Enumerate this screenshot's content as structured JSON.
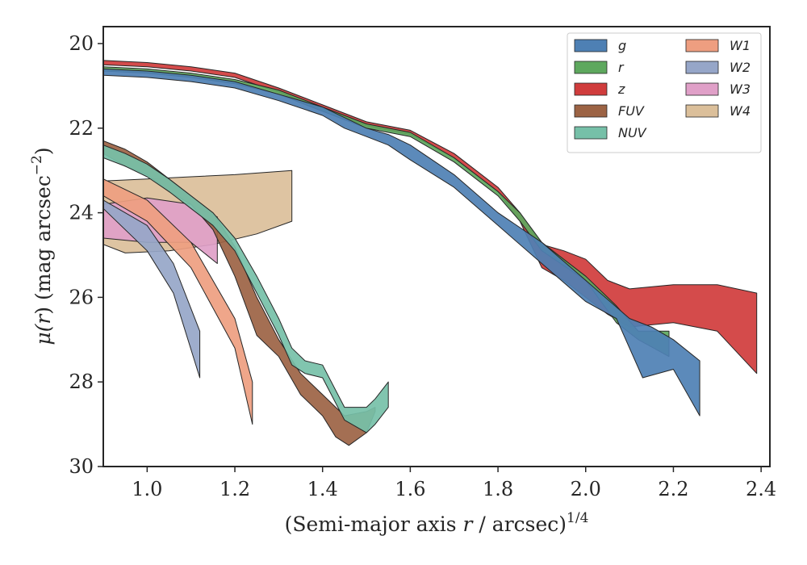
{
  "chart_data": {
    "type": "area",
    "xlim": [
      0.9,
      2.42
    ],
    "ylim": [
      30,
      19.6
    ],
    "y_inverted": true,
    "grid": false,
    "legend_placement": "top-right",
    "legend_columns": 2,
    "xticks": [
      "1.0",
      "1.2",
      "1.4",
      "1.6",
      "1.8",
      "2.0",
      "2.2",
      "2.4"
    ],
    "xtick_values": [
      1.0,
      1.2,
      1.4,
      1.6,
      1.8,
      2.0,
      2.2,
      2.4
    ],
    "yticks": [
      "20",
      "22",
      "24",
      "26",
      "28",
      "30"
    ],
    "ytick_values": [
      20,
      22,
      24,
      26,
      28,
      30
    ],
    "xlabel": {
      "main": "(Semi-major axis ",
      "var": "r",
      "mid": " / arcsec)",
      "sup": "1/4"
    },
    "ylabel": {
      "mu": "μ(",
      "var": "r",
      "mid": ") (mag arcsec",
      "sup": "−2",
      "end": ")"
    },
    "series": [
      {
        "name": "W4",
        "color": "#dbbf9a",
        "upper": [
          [
            0.9,
            23.25
          ],
          [
            1.0,
            23.2
          ],
          [
            1.1,
            23.15
          ],
          [
            1.2,
            23.1
          ],
          [
            1.33,
            23.0
          ]
        ],
        "lower": [
          [
            0.9,
            24.75
          ],
          [
            0.95,
            24.95
          ],
          [
            1.05,
            24.9
          ],
          [
            1.15,
            24.75
          ],
          [
            1.25,
            24.5
          ],
          [
            1.33,
            24.2
          ]
        ]
      },
      {
        "name": "W3",
        "color": "#e0a0c8",
        "upper": [
          [
            0.9,
            23.8
          ],
          [
            1.0,
            23.65
          ],
          [
            1.1,
            23.8
          ],
          [
            1.16,
            24.1
          ]
        ],
        "lower": [
          [
            0.9,
            24.6
          ],
          [
            1.0,
            24.7
          ],
          [
            1.1,
            24.7
          ],
          [
            1.16,
            25.2
          ]
        ]
      },
      {
        "name": "W2",
        "color": "#96a6c8",
        "upper": [
          [
            0.9,
            23.7
          ],
          [
            1.0,
            24.3
          ],
          [
            1.06,
            25.2
          ],
          [
            1.12,
            26.8
          ]
        ],
        "lower": [
          [
            0.9,
            23.9
          ],
          [
            1.0,
            24.9
          ],
          [
            1.06,
            25.9
          ],
          [
            1.12,
            27.9
          ]
        ]
      },
      {
        "name": "W1",
        "color": "#ee9e80",
        "upper": [
          [
            0.9,
            23.2
          ],
          [
            1.0,
            23.7
          ],
          [
            1.1,
            24.7
          ],
          [
            1.2,
            26.5
          ],
          [
            1.24,
            28.0
          ]
        ],
        "lower": [
          [
            0.9,
            23.6
          ],
          [
            1.0,
            24.2
          ],
          [
            1.1,
            25.3
          ],
          [
            1.2,
            27.2
          ],
          [
            1.24,
            29.0
          ]
        ]
      },
      {
        "name": "FUV",
        "color": "#9c6344",
        "upper": [
          [
            0.9,
            22.3
          ],
          [
            0.95,
            22.5
          ],
          [
            1.0,
            22.8
          ],
          [
            1.05,
            23.2
          ],
          [
            1.1,
            23.6
          ],
          [
            1.15,
            24.0
          ],
          [
            1.2,
            24.8
          ],
          [
            1.25,
            26.0
          ],
          [
            1.3,
            27.0
          ],
          [
            1.35,
            27.8
          ],
          [
            1.4,
            28.3
          ],
          [
            1.45,
            28.8
          ],
          [
            1.5,
            28.7
          ],
          [
            1.52,
            28.6
          ]
        ],
        "lower": [
          [
            0.9,
            22.6
          ],
          [
            0.95,
            22.9
          ],
          [
            1.0,
            23.1
          ],
          [
            1.05,
            23.5
          ],
          [
            1.1,
            23.8
          ],
          [
            1.15,
            24.4
          ],
          [
            1.2,
            25.5
          ],
          [
            1.25,
            26.9
          ],
          [
            1.3,
            27.4
          ],
          [
            1.35,
            28.3
          ],
          [
            1.4,
            28.8
          ],
          [
            1.43,
            29.3
          ],
          [
            1.46,
            29.5
          ],
          [
            1.5,
            29.2
          ],
          [
            1.52,
            28.7
          ]
        ]
      },
      {
        "name": "NUV",
        "color": "#76c0a8",
        "upper": [
          [
            0.9,
            22.4
          ],
          [
            0.95,
            22.6
          ],
          [
            1.0,
            22.85
          ],
          [
            1.05,
            23.2
          ],
          [
            1.1,
            23.6
          ],
          [
            1.15,
            24.0
          ],
          [
            1.2,
            24.6
          ],
          [
            1.25,
            25.5
          ],
          [
            1.3,
            26.5
          ],
          [
            1.33,
            27.2
          ],
          [
            1.36,
            27.5
          ],
          [
            1.4,
            27.6
          ],
          [
            1.45,
            28.6
          ],
          [
            1.5,
            28.6
          ],
          [
            1.52,
            28.4
          ],
          [
            1.55,
            28.0
          ]
        ],
        "lower": [
          [
            0.9,
            22.7
          ],
          [
            0.95,
            22.9
          ],
          [
            1.0,
            23.15
          ],
          [
            1.05,
            23.5
          ],
          [
            1.1,
            23.9
          ],
          [
            1.15,
            24.3
          ],
          [
            1.2,
            24.9
          ],
          [
            1.25,
            25.9
          ],
          [
            1.3,
            26.9
          ],
          [
            1.33,
            27.6
          ],
          [
            1.36,
            27.8
          ],
          [
            1.4,
            27.9
          ],
          [
            1.45,
            28.9
          ],
          [
            1.5,
            29.2
          ],
          [
            1.52,
            29.0
          ],
          [
            1.55,
            28.6
          ]
        ]
      },
      {
        "name": "z",
        "color": "#d03c3c",
        "upper": [
          [
            0.9,
            20.4
          ],
          [
            1.0,
            20.45
          ],
          [
            1.1,
            20.55
          ],
          [
            1.2,
            20.7
          ],
          [
            1.3,
            21.05
          ],
          [
            1.4,
            21.45
          ],
          [
            1.5,
            21.85
          ],
          [
            1.6,
            22.05
          ],
          [
            1.7,
            22.6
          ],
          [
            1.8,
            23.4
          ],
          [
            1.85,
            24.0
          ],
          [
            1.9,
            24.75
          ],
          [
            1.95,
            24.9
          ],
          [
            2.0,
            25.1
          ],
          [
            2.05,
            25.6
          ],
          [
            2.1,
            25.8
          ],
          [
            2.2,
            25.7
          ],
          [
            2.3,
            25.7
          ],
          [
            2.39,
            25.9
          ]
        ],
        "lower": [
          [
            0.9,
            20.5
          ],
          [
            1.0,
            20.55
          ],
          [
            1.1,
            20.65
          ],
          [
            1.2,
            20.8
          ],
          [
            1.3,
            21.15
          ],
          [
            1.4,
            21.55
          ],
          [
            1.5,
            21.95
          ],
          [
            1.6,
            22.15
          ],
          [
            1.7,
            22.7
          ],
          [
            1.8,
            23.5
          ],
          [
            1.85,
            24.2
          ],
          [
            1.9,
            25.3
          ],
          [
            1.95,
            25.6
          ],
          [
            2.0,
            26.0
          ],
          [
            2.05,
            26.4
          ],
          [
            2.1,
            26.7
          ],
          [
            2.2,
            26.6
          ],
          [
            2.3,
            26.8
          ],
          [
            2.39,
            27.8
          ]
        ]
      },
      {
        "name": "r",
        "color": "#5ea85e",
        "upper": [
          [
            0.9,
            20.55
          ],
          [
            1.0,
            20.6
          ],
          [
            1.1,
            20.7
          ],
          [
            1.2,
            20.85
          ],
          [
            1.3,
            21.1
          ],
          [
            1.4,
            21.5
          ],
          [
            1.5,
            21.9
          ],
          [
            1.6,
            22.1
          ],
          [
            1.7,
            22.7
          ],
          [
            1.8,
            23.5
          ],
          [
            1.85,
            24.0
          ],
          [
            1.9,
            24.7
          ],
          [
            2.0,
            25.5
          ],
          [
            2.07,
            26.2
          ],
          [
            2.12,
            26.8
          ],
          [
            2.19,
            26.8
          ]
        ],
        "lower": [
          [
            0.9,
            20.65
          ],
          [
            1.0,
            20.7
          ],
          [
            1.1,
            20.8
          ],
          [
            1.2,
            20.95
          ],
          [
            1.3,
            21.2
          ],
          [
            1.4,
            21.6
          ],
          [
            1.5,
            22.0
          ],
          [
            1.6,
            22.2
          ],
          [
            1.7,
            22.8
          ],
          [
            1.8,
            23.6
          ],
          [
            1.85,
            24.2
          ],
          [
            1.9,
            24.9
          ],
          [
            2.0,
            25.6
          ],
          [
            2.07,
            26.6
          ],
          [
            2.12,
            27.0
          ],
          [
            2.19,
            27.4
          ]
        ]
      },
      {
        "name": "g",
        "color": "#4e80b4",
        "upper": [
          [
            0.9,
            20.6
          ],
          [
            1.0,
            20.65
          ],
          [
            1.1,
            20.75
          ],
          [
            1.2,
            20.9
          ],
          [
            1.3,
            21.2
          ],
          [
            1.4,
            21.5
          ],
          [
            1.45,
            21.75
          ],
          [
            1.5,
            22.0
          ],
          [
            1.55,
            22.15
          ],
          [
            1.6,
            22.4
          ],
          [
            1.7,
            23.1
          ],
          [
            1.8,
            24.0
          ],
          [
            1.9,
            24.7
          ],
          [
            2.0,
            25.6
          ],
          [
            2.1,
            26.5
          ],
          [
            2.15,
            26.7
          ],
          [
            2.2,
            27.0
          ],
          [
            2.26,
            27.5
          ]
        ],
        "lower": [
          [
            0.9,
            20.75
          ],
          [
            1.0,
            20.8
          ],
          [
            1.1,
            20.9
          ],
          [
            1.2,
            21.05
          ],
          [
            1.3,
            21.35
          ],
          [
            1.4,
            21.7
          ],
          [
            1.45,
            22.0
          ],
          [
            1.5,
            22.2
          ],
          [
            1.55,
            22.4
          ],
          [
            1.6,
            22.75
          ],
          [
            1.7,
            23.4
          ],
          [
            1.8,
            24.3
          ],
          [
            1.9,
            25.2
          ],
          [
            2.0,
            26.1
          ],
          [
            2.07,
            26.5
          ],
          [
            2.13,
            27.9
          ],
          [
            2.2,
            27.7
          ],
          [
            2.26,
            28.8
          ]
        ]
      }
    ],
    "legend": [
      {
        "name": "g",
        "color": "#4e80b4"
      },
      {
        "name": "r",
        "color": "#5ea85e"
      },
      {
        "name": "z",
        "color": "#d03c3c"
      },
      {
        "name": "FUV",
        "color": "#9c6344"
      },
      {
        "name": "NUV",
        "color": "#76c0a8"
      },
      {
        "name": "W1",
        "color": "#ee9e80"
      },
      {
        "name": "W2",
        "color": "#96a6c8"
      },
      {
        "name": "W3",
        "color": "#e0a0c8"
      },
      {
        "name": "W4",
        "color": "#dbbf9a"
      }
    ]
  }
}
